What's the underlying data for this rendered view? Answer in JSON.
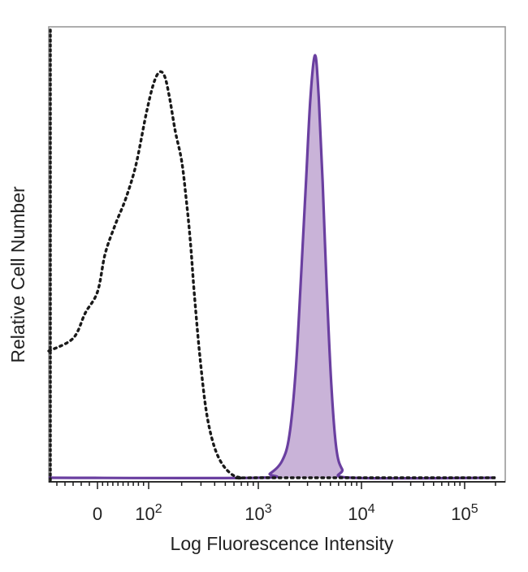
{
  "chart_data": {
    "type": "area",
    "title": "",
    "xlabel": "Log Fluorescence Intensity",
    "ylabel": "Relative Cell Number",
    "x_scale": "biexponential",
    "xlim": [
      -60,
      200000
    ],
    "ylim": [
      0,
      1.0
    ],
    "grid": false,
    "x_ticks": [
      {
        "value": 0,
        "base": "0",
        "exp": ""
      },
      {
        "value": 100,
        "base": "10",
        "exp": "2"
      },
      {
        "value": 1000,
        "base": "10",
        "exp": "3"
      },
      {
        "value": 10000,
        "base": "10",
        "exp": "4"
      },
      {
        "value": 100000,
        "base": "10",
        "exp": "5"
      }
    ],
    "series": [
      {
        "style": "dotted",
        "color": "#1a1a1a",
        "points": [
          [
            -60,
            0.3
          ],
          [
            -30,
            0.33
          ],
          [
            -15,
            0.39
          ],
          [
            0,
            0.44
          ],
          [
            15,
            0.53
          ],
          [
            35,
            0.6
          ],
          [
            55,
            0.66
          ],
          [
            75,
            0.74
          ],
          [
            95,
            0.86
          ],
          [
            110,
            0.93
          ],
          [
            125,
            0.96
          ],
          [
            140,
            0.95
          ],
          [
            155,
            0.9
          ],
          [
            175,
            0.82
          ],
          [
            200,
            0.75
          ],
          [
            220,
            0.66
          ],
          [
            240,
            0.56
          ],
          [
            260,
            0.44
          ],
          [
            290,
            0.3
          ],
          [
            330,
            0.17
          ],
          [
            380,
            0.09
          ],
          [
            450,
            0.04
          ],
          [
            560,
            0.01
          ],
          [
            700,
            0.0
          ],
          [
            1000,
            0.0
          ],
          [
            200000,
            0.0
          ]
        ]
      },
      {
        "style": "filled",
        "color": "#6a3fa0",
        "fill": "#c9b3d8",
        "points": [
          [
            -60,
            0.0
          ],
          [
            1000,
            0.0
          ],
          [
            1300,
            0.01
          ],
          [
            1700,
            0.04
          ],
          [
            2000,
            0.1
          ],
          [
            2300,
            0.25
          ],
          [
            2600,
            0.48
          ],
          [
            2900,
            0.7
          ],
          [
            3200,
            0.9
          ],
          [
            3550,
            1.0
          ],
          [
            3850,
            0.9
          ],
          [
            4200,
            0.7
          ],
          [
            4600,
            0.45
          ],
          [
            5100,
            0.22
          ],
          [
            5700,
            0.07
          ],
          [
            6500,
            0.02
          ],
          [
            8000,
            0.0
          ],
          [
            200000,
            0.0
          ]
        ]
      }
    ]
  }
}
